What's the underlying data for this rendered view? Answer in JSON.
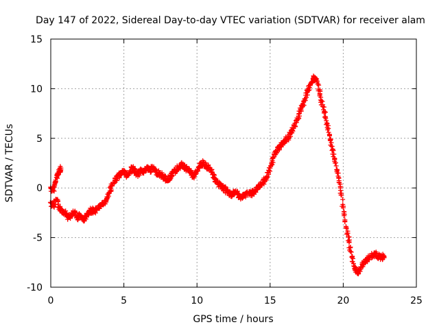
{
  "colors": {
    "series": "#ff0000",
    "grid": "#a0a0a0",
    "axis": "#000000",
    "background": "#ffffff"
  },
  "chart_data": {
    "type": "scatter",
    "title": "Day 147 of 2022, Sidereal Day-to-day VTEC variation (SDTVAR) for receiver alam",
    "xlabel": "GPS time / hours",
    "ylabel": "SDTVAR / TECUs",
    "xlim": [
      0,
      25
    ],
    "ylim": [
      -10,
      15
    ],
    "xticks": [
      0,
      5,
      10,
      15,
      20,
      25
    ],
    "yticks": [
      -10,
      -5,
      0,
      5,
      10,
      15
    ],
    "grid": true,
    "marker": "+",
    "series": [
      {
        "name": "SDTVAR",
        "x": [
          0.0,
          0.15,
          0.3,
          0.45,
          0.6,
          0.7,
          0.0,
          0.2,
          0.4,
          0.6,
          0.8,
          1.0,
          1.2,
          1.4,
          1.6,
          1.8,
          2.0,
          2.2,
          2.4,
          2.6,
          2.8,
          3.0,
          3.2,
          3.4,
          3.6,
          3.8,
          4.0,
          4.2,
          4.4,
          4.6,
          4.8,
          5.0,
          5.2,
          5.4,
          5.6,
          5.8,
          6.0,
          6.2,
          6.4,
          6.6,
          6.8,
          7.0,
          7.2,
          7.4,
          7.6,
          7.8,
          8.0,
          8.2,
          8.4,
          8.6,
          8.8,
          9.0,
          9.2,
          9.4,
          9.6,
          9.8,
          10.0,
          10.2,
          10.4,
          10.6,
          10.8,
          11.0,
          11.2,
          11.4,
          11.6,
          11.8,
          12.0,
          12.2,
          12.4,
          12.6,
          12.8,
          13.0,
          13.2,
          13.4,
          13.6,
          13.8,
          14.0,
          14.2,
          14.4,
          14.6,
          14.8,
          15.0,
          15.2,
          15.4,
          15.6,
          15.8,
          16.0,
          16.2,
          16.4,
          16.6,
          16.8,
          17.0,
          17.2,
          17.4,
          17.6,
          17.8,
          18.0,
          18.2,
          18.4,
          18.6,
          18.8,
          19.0,
          19.2,
          19.4,
          19.6,
          19.8,
          20.0,
          20.2,
          20.4,
          20.6,
          20.8,
          21.0,
          21.2,
          21.4,
          21.6,
          21.8,
          22.0,
          22.2,
          22.4,
          22.6,
          22.8
        ],
        "y": [
          0.0,
          -0.3,
          0.5,
          1.2,
          1.8,
          2.0,
          -1.5,
          -1.8,
          -1.2,
          -2.0,
          -2.3,
          -2.5,
          -3.0,
          -2.8,
          -2.5,
          -3.0,
          -2.7,
          -3.2,
          -2.9,
          -2.6,
          -2.2,
          -2.4,
          -2.0,
          -1.8,
          -1.6,
          -1.2,
          -0.5,
          0.2,
          0.8,
          1.2,
          1.5,
          1.6,
          1.2,
          1.7,
          2.0,
          1.5,
          1.4,
          1.8,
          1.7,
          2.0,
          1.8,
          2.0,
          1.6,
          1.5,
          1.2,
          1.0,
          0.8,
          1.2,
          1.6,
          1.8,
          2.2,
          2.3,
          2.0,
          1.8,
          1.5,
          1.0,
          1.8,
          2.2,
          2.5,
          2.2,
          2.0,
          1.8,
          1.0,
          0.5,
          0.2,
          0.0,
          -0.3,
          -0.5,
          -0.8,
          -0.4,
          -0.6,
          -1.0,
          -0.8,
          -0.5,
          -0.6,
          -0.5,
          -0.3,
          0.0,
          0.3,
          0.8,
          1.2,
          2.0,
          3.0,
          3.6,
          4.0,
          4.5,
          4.8,
          5.0,
          5.5,
          6.0,
          6.8,
          7.5,
          8.2,
          9.0,
          9.8,
          10.6,
          11.2,
          10.8,
          9.5,
          8.2,
          7.0,
          5.6,
          4.2,
          3.0,
          1.5,
          0.0,
          -2.0,
          -4.0,
          -5.5,
          -7.0,
          -8.2,
          -8.5,
          -8.0,
          -7.5,
          -7.2,
          -7.0,
          -6.8,
          -6.6,
          -6.9,
          -7.0,
          -6.9
        ]
      }
    ]
  }
}
